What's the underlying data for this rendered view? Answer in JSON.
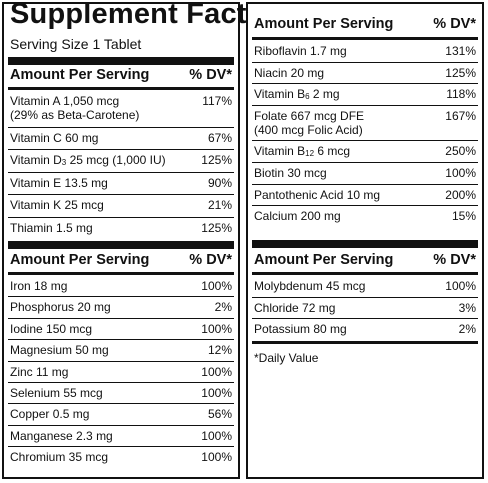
{
  "title": "Supplement Facts",
  "serving_size": "Serving Size 1 Tablet",
  "col_header": "Amount Per Serving",
  "dv_header": "% DV*",
  "left_group_1": [
    {
      "name": "Vitamin A 1,050 mcg",
      "sub": "(29% as Beta-Carotene)",
      "dv": "117%"
    },
    {
      "name": "Vitamin C 60 mg",
      "dv": "67%"
    },
    {
      "name_pre": "Vitamin D",
      "name_sub": "3",
      "name_post": " 25 mcg (1,000 IU)",
      "dv": "125%"
    },
    {
      "name": "Vitamin E 13.5 mg",
      "dv": "90%"
    },
    {
      "name": "Vitamin K 25 mcg",
      "dv": "21%"
    },
    {
      "name": "Thiamin 1.5 mg",
      "dv": "125%"
    }
  ],
  "left_group_2": [
    {
      "name": "Iron 18 mg",
      "dv": "100%"
    },
    {
      "name": "Phosphorus 20 mg",
      "dv": "2%"
    },
    {
      "name": "Iodine 150 mcg",
      "dv": "100%"
    },
    {
      "name": "Magnesium 50 mg",
      "dv": "12%"
    },
    {
      "name": "Zinc 11 mg",
      "dv": "100%"
    },
    {
      "name": "Selenium 55 mcg",
      "dv": "100%"
    },
    {
      "name": "Copper 0.5 mg",
      "dv": "56%"
    },
    {
      "name": "Manganese 2.3 mg",
      "dv": "100%"
    },
    {
      "name": "Chromium 35 mcg",
      "dv": "100%"
    }
  ],
  "right_group_1": [
    {
      "name": "Riboflavin 1.7 mg",
      "dv": "131%"
    },
    {
      "name": "Niacin 20 mg",
      "dv": "125%"
    },
    {
      "name_pre": "Vitamin B",
      "name_sub": "6",
      "name_post": " 2 mg",
      "dv": "118%"
    },
    {
      "name": "Folate 667 mcg DFE",
      "sub": "(400 mcg Folic Acid)",
      "dv": "167%"
    },
    {
      "name_pre": "Vitamin B",
      "name_sub": "12",
      "name_post": " 6 mcg",
      "dv": "250%"
    },
    {
      "name": "Biotin 30 mcg",
      "dv": "100%"
    },
    {
      "name": "Pantothenic Acid 10 mg",
      "dv": "200%"
    },
    {
      "name": "Calcium 200 mg",
      "dv": "15%"
    }
  ],
  "right_group_2": [
    {
      "name": "Molybdenum 45 mcg",
      "dv": "100%"
    },
    {
      "name": "Chloride 72 mg",
      "dv": "3%"
    },
    {
      "name": "Potassium 80 mg",
      "dv": "2%"
    }
  ],
  "footnote": "*Daily Value"
}
